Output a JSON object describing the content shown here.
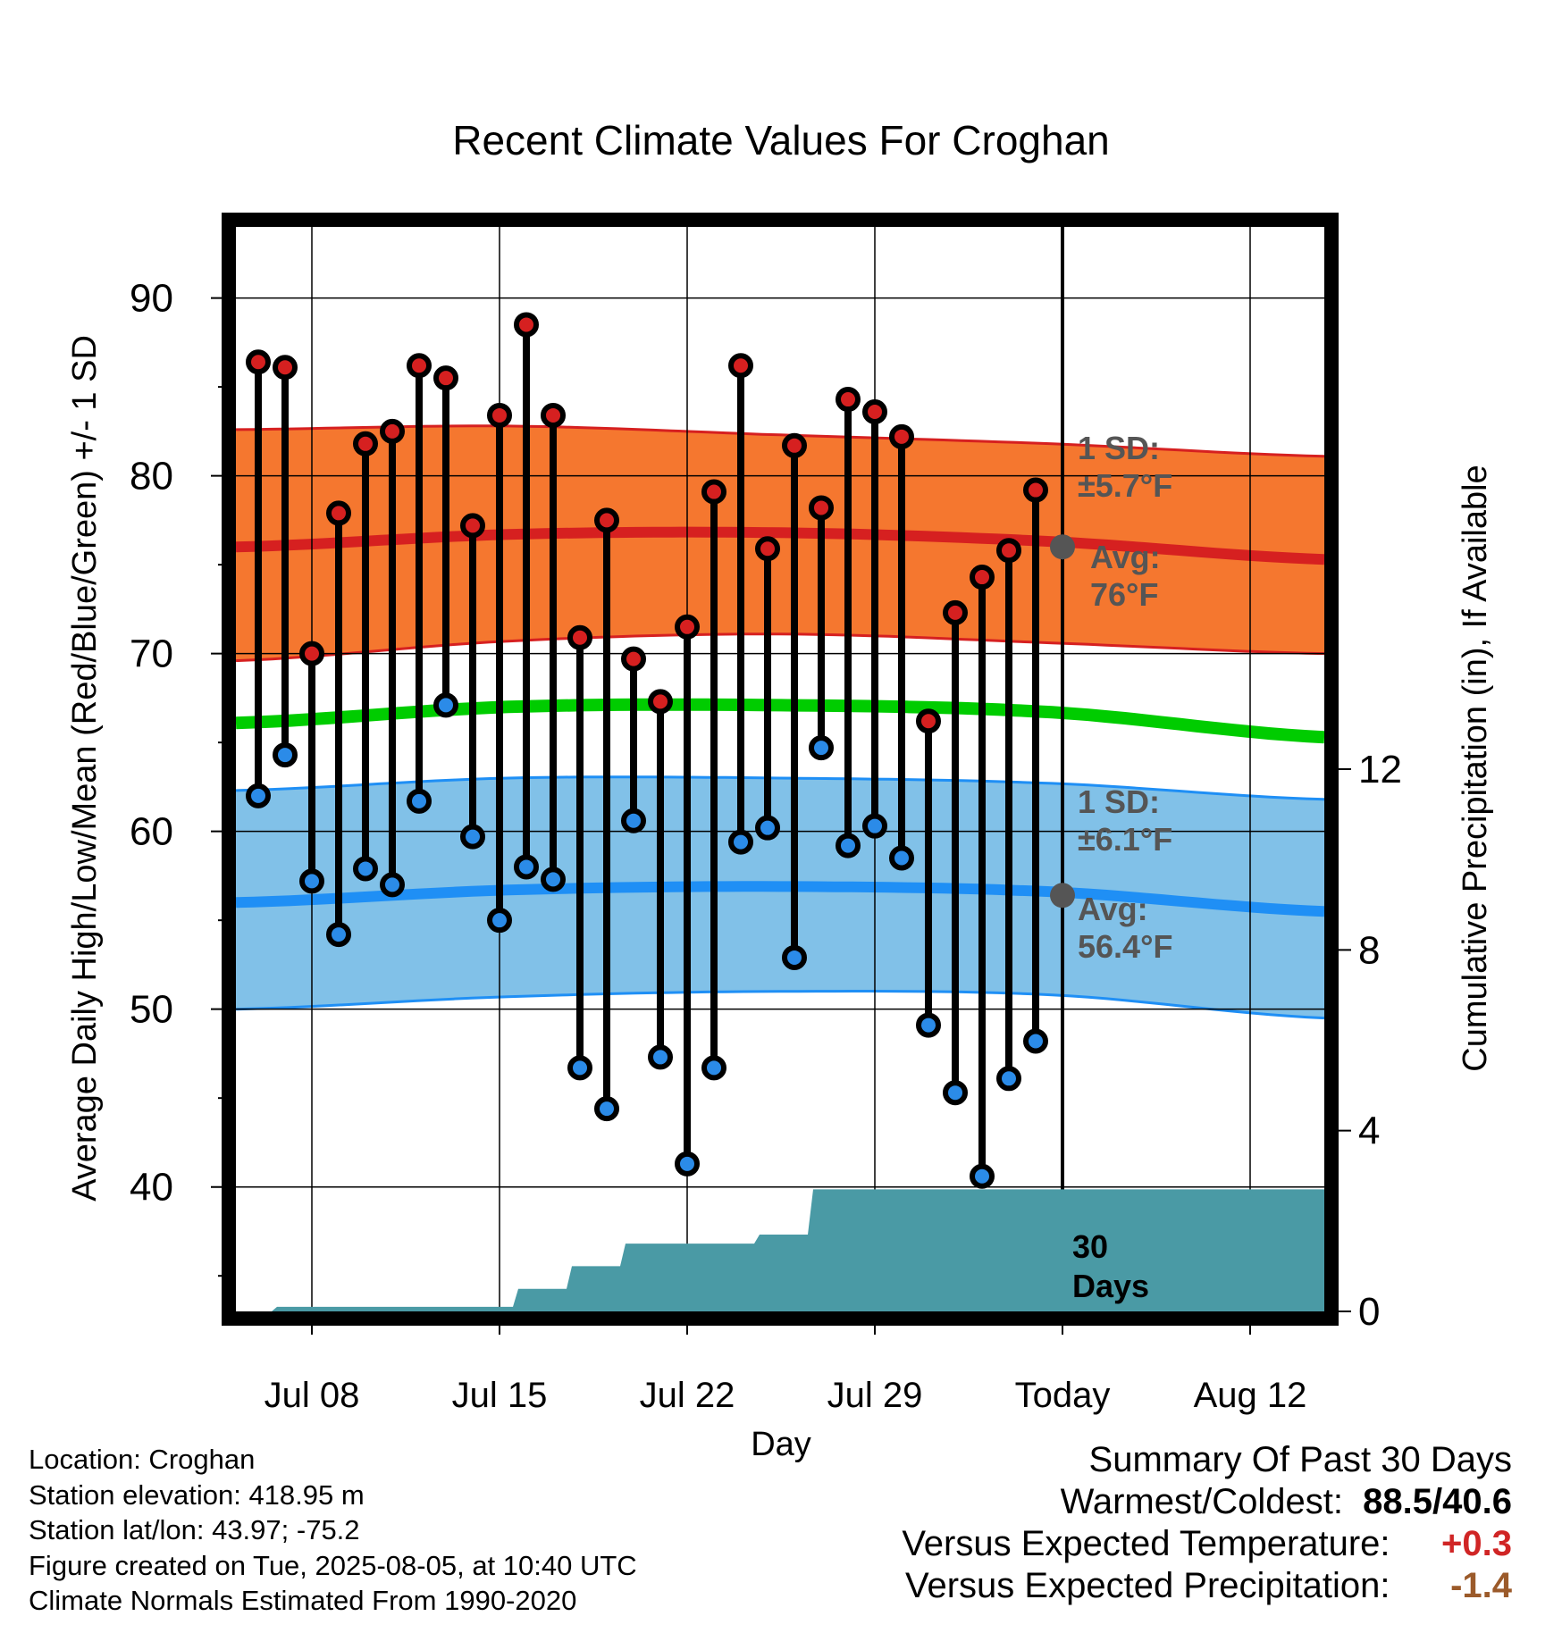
{
  "chart_data": {
    "type": "line",
    "title": "Recent Climate Values For Croghan",
    "xlabel": "Day",
    "ylabel_left": "Average Daily High/Low/Mean (Red/Blue/Green) +/- 1 SD",
    "ylabel_right": "Cumulative Precipitation (in), If Available",
    "ylim_left": [
      33,
      94
    ],
    "ylim_right": [
      0,
      24
    ],
    "grid": true,
    "x_tick_labels": [
      "Jul 08",
      "Jul 15",
      "Jul 22",
      "Jul 29",
      "Today",
      "Aug 12"
    ],
    "y_ticks_left": [
      40,
      50,
      60,
      70,
      80,
      90
    ],
    "y_ticks_right": [
      0,
      4,
      8,
      12
    ],
    "days": [
      "Jul 06",
      "Jul 07",
      "Jul 08",
      "Jul 09",
      "Jul 10",
      "Jul 11",
      "Jul 12",
      "Jul 13",
      "Jul 14",
      "Jul 15",
      "Jul 16",
      "Jul 17",
      "Jul 18",
      "Jul 19",
      "Jul 20",
      "Jul 21",
      "Jul 22",
      "Jul 23",
      "Jul 24",
      "Jul 25",
      "Jul 26",
      "Jul 27",
      "Jul 28",
      "Jul 29",
      "Jul 30",
      "Jul 31",
      "Aug 01",
      "Aug 02",
      "Aug 03",
      "Aug 04"
    ],
    "series": [
      {
        "name": "High",
        "color": "#d62020",
        "values": [
          86.4,
          86.1,
          70.0,
          77.9,
          81.8,
          82.5,
          86.2,
          85.5,
          77.2,
          83.4,
          88.5,
          83.4,
          70.9,
          77.5,
          69.7,
          67.3,
          71.5,
          79.1,
          86.2,
          75.9,
          81.7,
          78.2,
          84.3,
          83.6,
          82.2,
          66.2,
          72.3,
          74.3,
          75.8,
          79.2
        ]
      },
      {
        "name": "Low",
        "color": "#2b8be8",
        "values": [
          62.0,
          64.3,
          57.2,
          54.2,
          57.9,
          57.0,
          61.7,
          67.1,
          59.7,
          55.0,
          58.0,
          57.3,
          46.7,
          44.4,
          60.6,
          47.3,
          41.3,
          46.7,
          59.4,
          60.2,
          52.9,
          64.7,
          59.2,
          60.3,
          58.5,
          49.1,
          45.3,
          40.6,
          46.1,
          48.2
        ]
      },
      {
        "name": "Cumulative Precipitation",
        "color": "#4a9aa5",
        "values": [
          0.0,
          0.1,
          0.1,
          0.1,
          0.1,
          0.1,
          0.1,
          0.1,
          0.1,
          0.1,
          0.5,
          0.5,
          1.0,
          1.0,
          1.5,
          1.5,
          1.5,
          1.5,
          1.5,
          1.7,
          1.7,
          2.7,
          2.7,
          2.7,
          2.7,
          2.7,
          2.7,
          2.7,
          2.7,
          2.7
        ]
      }
    ],
    "normals": {
      "high_avg": [
        76.0,
        76.7,
        76.8,
        76.3,
        75.3
      ],
      "high_sd_upper": [
        82.6,
        82.8,
        82.3,
        81.8,
        81.1
      ],
      "high_sd_lower": [
        69.6,
        70.7,
        71.1,
        70.6,
        70.0
      ],
      "mean": [
        66.1,
        67.0,
        67.1,
        66.7,
        65.3
      ],
      "low_avg": [
        56.0,
        56.7,
        56.9,
        56.6,
        55.5
      ],
      "low_sd_upper": [
        62.3,
        63.0,
        63.0,
        62.7,
        61.8
      ],
      "low_sd_lower": [
        50.0,
        50.7,
        51.0,
        50.8,
        49.5
      ],
      "colors": {
        "high_band": "#f5772f",
        "high_line": "#d62020",
        "low_band": "#81c1e8",
        "low_line": "#1f8ff5",
        "mean_line": "#00cc00"
      }
    },
    "annotations": {
      "high_sd_line1": "1 SD:",
      "high_sd_line2": "±5.7°F",
      "high_avg_line1": "Avg:",
      "high_avg_line2": "76°F",
      "low_sd_line1": "1 SD:",
      "low_sd_line2": "±6.1°F",
      "low_avg_line1": "Avg:",
      "low_avg_line2": "56.4°F",
      "precip_line1": "30",
      "precip_line2": "Days"
    }
  },
  "info": {
    "location": "Location: Croghan",
    "elevation": "Station elevation: 418.95 m",
    "latlon": "Station lat/lon: 43.97; -75.2",
    "created": "Figure created on Tue, 2025-08-05, at 10:40 UTC",
    "normals": "Climate Normals Estimated From 1990-2020"
  },
  "summary": {
    "title": "Summary Of Past 30 Days",
    "warm_cold_label": "Warmest/Coldest:",
    "warm_cold_value": "88.5/40.6",
    "temp_label": "Versus Expected Temperature:",
    "temp_value": "+0.3",
    "precip_label": "Versus Expected Precipitation:",
    "precip_value": "-1.4"
  }
}
